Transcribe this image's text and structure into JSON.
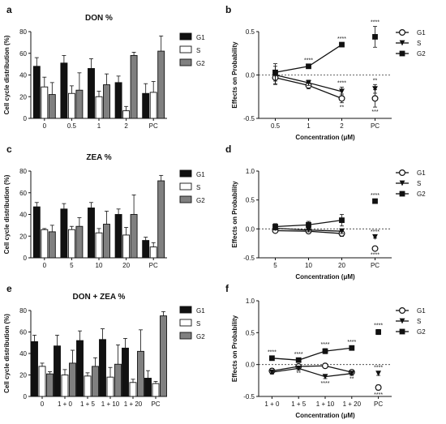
{
  "panels": [
    {
      "label": "a",
      "kind": "bar",
      "title": "DON %",
      "ylabel": "Cell cycle distribution (%)",
      "ylim": [
        0,
        80
      ],
      "yticks": [
        0,
        20,
        40,
        60,
        80
      ],
      "categories": [
        "0",
        "0.5",
        "1",
        "2",
        "PC"
      ],
      "series": [
        {
          "name": "G1",
          "color": "#111111",
          "values": [
            48,
            51,
            46,
            33,
            23
          ],
          "err": [
            8,
            7,
            9,
            6,
            9
          ]
        },
        {
          "name": "S",
          "color": "#ffffff",
          "values": [
            29,
            23,
            20,
            7,
            24
          ],
          "err": [
            9,
            7,
            5,
            4,
            10
          ]
        },
        {
          "name": "G2",
          "color": "#808080",
          "values": [
            22,
            26,
            31,
            58,
            62
          ],
          "err": [
            11,
            16,
            10,
            3,
            14
          ]
        }
      ]
    },
    {
      "label": "b",
      "kind": "line",
      "title": "",
      "ylabel": "Effects on Probability",
      "xlabel": "Concentration (μM)",
      "ylim": [
        -0.5,
        0.5
      ],
      "yticks": [
        "-0.5",
        "0.0",
        "0.5"
      ],
      "categories": [
        "0.5",
        "1",
        "2",
        "PC"
      ],
      "series": [
        {
          "name": "G1",
          "marker": "circle",
          "values": [
            -0.03,
            -0.12,
            -0.27,
            -0.27
          ],
          "err": [
            0.08,
            0.04,
            0.05,
            0.1
          ],
          "labels": [
            "",
            "",
            "**",
            "***"
          ]
        },
        {
          "name": "S",
          "marker": "triangle",
          "values": [
            0.0,
            -0.09,
            -0.19,
            -0.16
          ],
          "err": [
            0.1,
            0.03,
            0.05,
            0.05
          ],
          "labels": [
            "",
            "",
            "****",
            "**"
          ]
        },
        {
          "name": "G2",
          "marker": "square",
          "values": [
            0.03,
            0.1,
            0.35,
            0.44
          ],
          "err": [
            0.1,
            0.02,
            0.02,
            0.12
          ],
          "labels": [
            "",
            "****",
            "****",
            "****"
          ]
        }
      ],
      "connect": 3
    },
    {
      "label": "c",
      "kind": "bar",
      "title": "ZEA %",
      "ylabel": "Cell cycle distribution (%)",
      "ylim": [
        0,
        80
      ],
      "yticks": [
        0,
        20,
        40,
        60,
        80
      ],
      "categories": [
        "0",
        "5",
        "10",
        "20",
        "PC"
      ],
      "series": [
        {
          "name": "G1",
          "color": "#111111",
          "values": [
            47,
            45,
            46,
            40,
            16
          ],
          "err": [
            4,
            5,
            5,
            5,
            3
          ]
        },
        {
          "name": "S",
          "color": "#ffffff",
          "values": [
            26,
            26,
            23,
            21,
            10
          ],
          "err": [
            1,
            3,
            4,
            7,
            4
          ]
        },
        {
          "name": "G2",
          "color": "#808080",
          "values": [
            24,
            29,
            31,
            40,
            71
          ],
          "err": [
            6,
            8,
            12,
            18,
            5
          ]
        }
      ]
    },
    {
      "label": "d",
      "kind": "line",
      "title": "",
      "ylabel": "Effects on Probability",
      "xlabel": "Concentration (μM)",
      "ylim": [
        -0.5,
        1.0
      ],
      "yticks": [
        "-0.5",
        "0.0",
        "0.5",
        "1.0"
      ],
      "categories": [
        "5",
        "10",
        "20",
        "PC"
      ],
      "series": [
        {
          "name": "G1",
          "marker": "circle",
          "values": [
            -0.03,
            -0.04,
            -0.08,
            -0.34
          ],
          "err": [
            0.03,
            0.03,
            0.05,
            0.03
          ],
          "labels": [
            "",
            "",
            "",
            "****"
          ]
        },
        {
          "name": "S",
          "marker": "triangle",
          "values": [
            0.01,
            -0.02,
            -0.04,
            -0.14
          ],
          "err": [
            0.03,
            0.03,
            0.04,
            0.02
          ],
          "labels": [
            "",
            "",
            "",
            "****"
          ]
        },
        {
          "name": "G2",
          "marker": "square",
          "values": [
            0.04,
            0.07,
            0.15,
            0.48
          ],
          "err": [
            0.05,
            0.06,
            0.1,
            0.03
          ],
          "labels": [
            "",
            "",
            "",
            "****"
          ]
        }
      ],
      "connect": 3
    },
    {
      "label": "e",
      "kind": "bar",
      "title": "DON + ZEA %",
      "ylabel": "Cell cycle distribution (%)",
      "ylim": [
        0,
        80
      ],
      "yticks": [
        0,
        20,
        40,
        60,
        80
      ],
      "categories": [
        "0",
        "1 + 0",
        "1 + 5",
        "1 + 10",
        "1 + 20",
        "PC"
      ],
      "series": [
        {
          "name": "G1",
          "color": "#111111",
          "values": [
            51,
            47,
            52,
            53,
            45,
            17
          ],
          "err": [
            6,
            10,
            9,
            10,
            9,
            7
          ]
        },
        {
          "name": "S",
          "color": "#ffffff",
          "values": [
            28,
            20,
            19,
            18,
            13,
            12
          ],
          "err": [
            3,
            5,
            3,
            9,
            3,
            2
          ]
        },
        {
          "name": "G2",
          "color": "#808080",
          "values": [
            21,
            31,
            28,
            30,
            42,
            75
          ],
          "err": [
            2,
            12,
            8,
            18,
            20,
            4
          ]
        }
      ]
    },
    {
      "label": "f",
      "kind": "line",
      "title": "",
      "ylabel": "Effects on Probability",
      "xlabel": "Concentration (μM)",
      "ylim": [
        -0.5,
        1.0
      ],
      "yticks": [
        "-0.5",
        "0.0",
        "0.5",
        "1.0"
      ],
      "categories": [
        "1 + 0",
        "1 + 5",
        "1 + 10",
        "1 + 20",
        "PC"
      ],
      "series": [
        {
          "name": "G1",
          "marker": "circle",
          "values": [
            -0.1,
            -0.03,
            -0.02,
            -0.12,
            -0.36
          ],
          "err": [
            0.04,
            0.03,
            0.03,
            0.03,
            0.04
          ],
          "labels": [
            "",
            "**",
            "",
            "**",
            "****"
          ]
        },
        {
          "name": "S",
          "marker": "triangle",
          "values": [
            -0.12,
            -0.06,
            -0.19,
            -0.14,
            -0.14
          ],
          "err": [
            0.03,
            0.03,
            0.03,
            0.03,
            0.03
          ],
          "labels": [
            "",
            "",
            "****",
            "",
            "****"
          ]
        },
        {
          "name": "G2",
          "marker": "square",
          "values": [
            0.1,
            0.07,
            0.21,
            0.26,
            0.51
          ],
          "err": [
            0.03,
            0.03,
            0.04,
            0.03,
            0.04
          ],
          "labels": [
            "****",
            "****",
            "****",
            "****",
            "****"
          ]
        }
      ],
      "connect": 4
    }
  ]
}
